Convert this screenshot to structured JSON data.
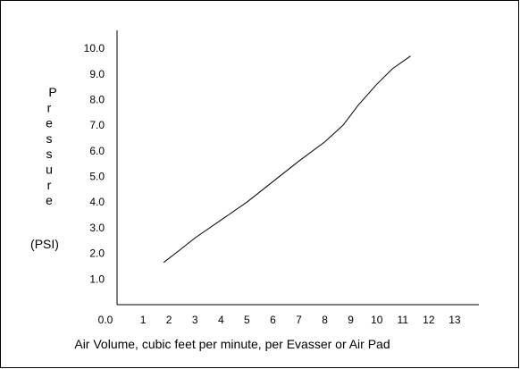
{
  "chart_data": {
    "type": "line",
    "title": "",
    "xlabel": "Air Volume, cubic feet per minute, per Evasser or Air Pad",
    "ylabel": "Pressure",
    "ylabel_unit": "(PSI)",
    "x_ticks": [
      "0.0",
      "1",
      "2",
      "3",
      "4",
      "5",
      "6",
      "7",
      "8",
      "9",
      "10",
      "11",
      "12",
      "13"
    ],
    "y_ticks": [
      "1.0",
      "2.0",
      "3.0",
      "4.0",
      "5.0",
      "6.0",
      "7.0",
      "8.0",
      "9.0",
      "10.0"
    ],
    "xlim": [
      0,
      14
    ],
    "ylim": [
      0,
      10.7
    ],
    "grid": false,
    "legend": "none",
    "series": [
      {
        "x": [
          1.8,
          2.5,
          3.0,
          4.0,
          5.0,
          6.0,
          7.0,
          8.0,
          8.7,
          9.3,
          10.0,
          10.6,
          11.3
        ],
        "y": [
          1.65,
          2.2,
          2.6,
          3.3,
          4.0,
          4.8,
          5.6,
          6.35,
          7.0,
          7.8,
          8.6,
          9.2,
          9.7
        ]
      }
    ]
  },
  "colors": {
    "line": "#000000",
    "axis": "#000000",
    "frame": "#000000",
    "background": "#ffffff"
  }
}
